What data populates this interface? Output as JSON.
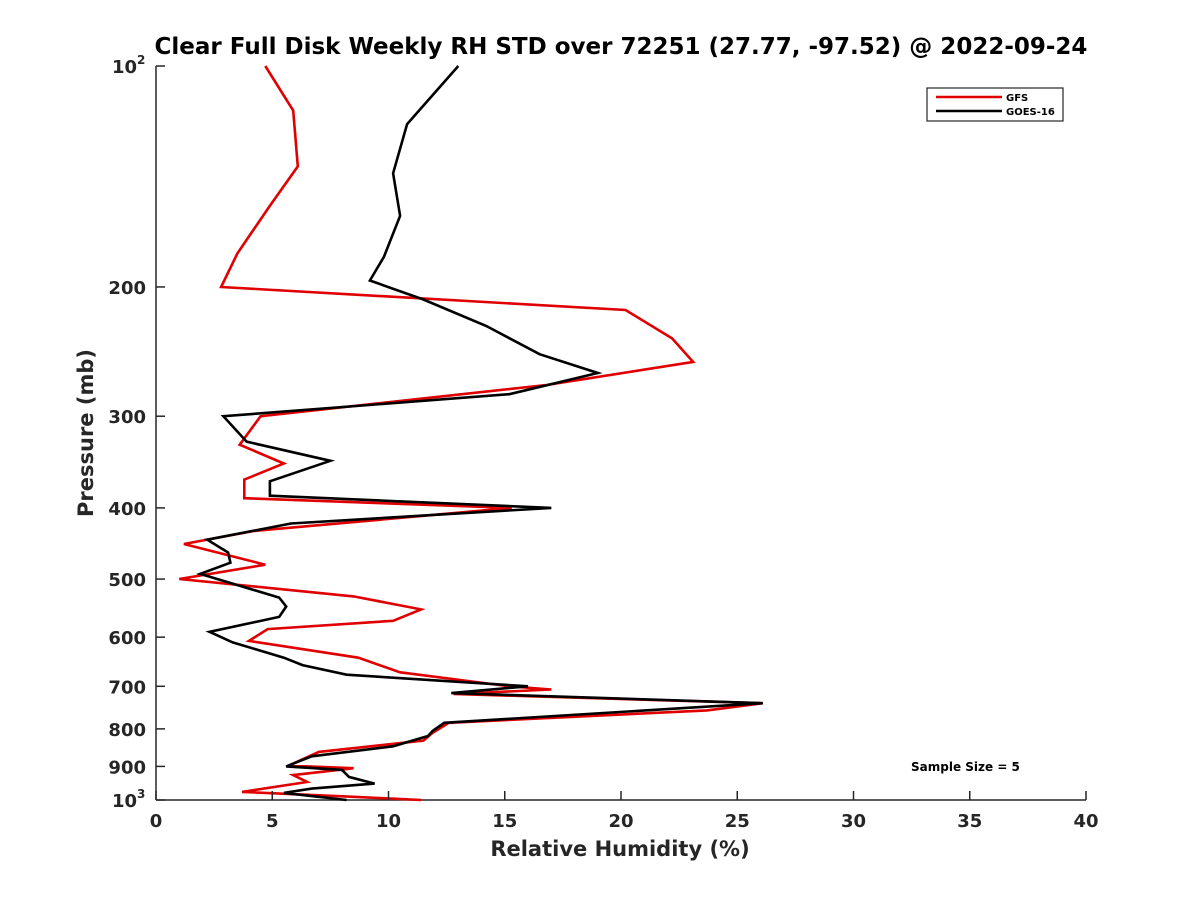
{
  "chart_data": {
    "type": "line",
    "title": "Clear Full Disk Weekly RH STD over 72251 (27.77, -97.52) @ 2022-09-24",
    "xlabel": "Relative Humidity (%)",
    "ylabel": "Pressure (mb)",
    "xlim": [
      0,
      40
    ],
    "ylim": [
      100,
      1000
    ],
    "y_scale": "log",
    "y_direction": "reversed",
    "x_ticks": [
      "0",
      "5",
      "10",
      "15",
      "20",
      "25",
      "30",
      "35",
      "40"
    ],
    "y_ticks": [
      {
        "value": 100,
        "label": "10",
        "sup": "2"
      },
      {
        "value": 200,
        "label": "200"
      },
      {
        "value": 300,
        "label": "300"
      },
      {
        "value": 400,
        "label": "400"
      },
      {
        "value": 500,
        "label": "500"
      },
      {
        "value": 600,
        "label": "600"
      },
      {
        "value": 700,
        "label": "700"
      },
      {
        "value": 800,
        "label": "800"
      },
      {
        "value": 900,
        "label": "900"
      },
      {
        "value": 1000,
        "label": "10",
        "sup": "3"
      }
    ],
    "grid": false,
    "legend": "top-right",
    "series": [
      {
        "name": "GFS",
        "color": "#e00000",
        "points": [
          [
            4.7,
            100
          ],
          [
            5.9,
            115
          ],
          [
            6.1,
            137
          ],
          [
            4.9,
            155
          ],
          [
            3.5,
            180
          ],
          [
            2.8,
            200
          ],
          [
            20.2,
            215
          ],
          [
            22.2,
            235
          ],
          [
            23.1,
            253
          ],
          [
            16.8,
            272
          ],
          [
            4.5,
            300
          ],
          [
            3.6,
            328
          ],
          [
            5.5,
            348
          ],
          [
            3.8,
            366
          ],
          [
            3.8,
            388
          ],
          [
            15.3,
            400
          ],
          [
            4.2,
            430
          ],
          [
            1.2,
            448
          ],
          [
            4.7,
            478
          ],
          [
            1.0,
            500
          ],
          [
            8.5,
            528
          ],
          [
            11.4,
            550
          ],
          [
            10.2,
            570
          ],
          [
            4.8,
            585
          ],
          [
            4.0,
            607
          ],
          [
            8.7,
            640
          ],
          [
            10.5,
            670
          ],
          [
            15.2,
            700
          ],
          [
            17.0,
            707
          ],
          [
            12.8,
            717
          ],
          [
            26.1,
            738
          ],
          [
            23.7,
            755
          ],
          [
            12.6,
            785
          ],
          [
            11.9,
            810
          ],
          [
            11.5,
            830
          ],
          [
            7.0,
            860
          ],
          [
            5.7,
            898
          ],
          [
            8.5,
            905
          ],
          [
            5.9,
            925
          ],
          [
            6.5,
            945
          ],
          [
            3.7,
            975
          ],
          [
            8.5,
            990
          ],
          [
            11.4,
            1000
          ]
        ]
      },
      {
        "name": "GOES-16",
        "color": "#000000",
        "points": [
          [
            13.0,
            100
          ],
          [
            10.8,
            120
          ],
          [
            10.2,
            140
          ],
          [
            10.5,
            160
          ],
          [
            9.8,
            182
          ],
          [
            9.2,
            196
          ],
          [
            11.5,
            208
          ],
          [
            14.2,
            226
          ],
          [
            16.5,
            247
          ],
          [
            19.0,
            262
          ],
          [
            15.2,
            280
          ],
          [
            2.9,
            300
          ],
          [
            3.9,
            325
          ],
          [
            7.5,
            345
          ],
          [
            4.9,
            368
          ],
          [
            4.9,
            385
          ],
          [
            17.0,
            400
          ],
          [
            5.8,
            420
          ],
          [
            2.2,
            442
          ],
          [
            3.1,
            460
          ],
          [
            3.2,
            475
          ],
          [
            1.9,
            492
          ],
          [
            5.3,
            530
          ],
          [
            5.6,
            545
          ],
          [
            5.3,
            563
          ],
          [
            2.3,
            590
          ],
          [
            3.3,
            610
          ],
          [
            5.5,
            640
          ],
          [
            6.3,
            655
          ],
          [
            8.2,
            675
          ],
          [
            16.0,
            700
          ],
          [
            12.7,
            715
          ],
          [
            26.1,
            738
          ],
          [
            12.4,
            785
          ],
          [
            11.9,
            805
          ],
          [
            11.7,
            818
          ],
          [
            10.2,
            845
          ],
          [
            6.7,
            872
          ],
          [
            5.6,
            900
          ],
          [
            8.0,
            910
          ],
          [
            8.3,
            930
          ],
          [
            9.4,
            950
          ],
          [
            6.7,
            965
          ],
          [
            5.5,
            978
          ],
          [
            8.2,
            1000
          ]
        ]
      }
    ],
    "annotations": [
      {
        "text": "Sample Size = 5"
      }
    ]
  }
}
